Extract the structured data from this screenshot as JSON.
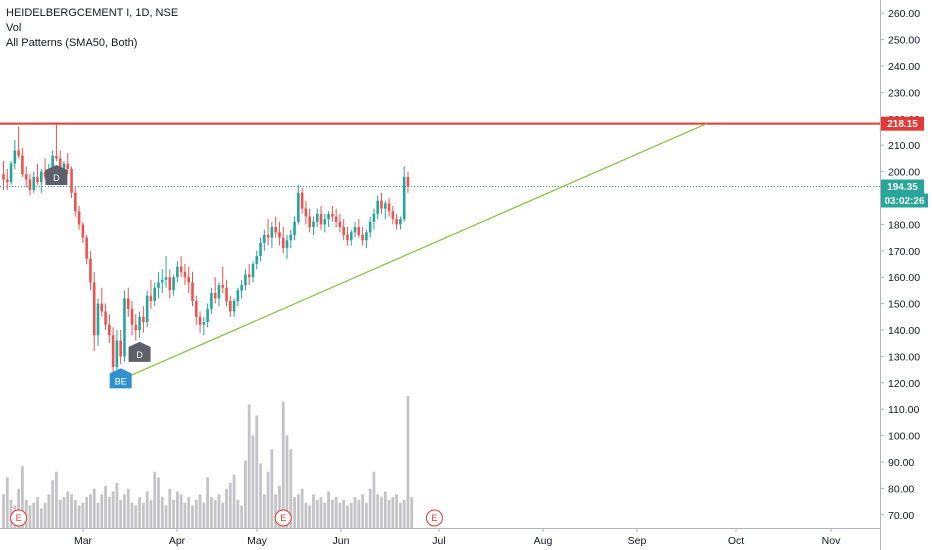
{
  "legend": {
    "title": "HEIDELBERGCEMENT I, 1D, NSE",
    "vol": "Vol",
    "pattern": "All Patterns (SMA50, Both)"
  },
  "colors": {
    "up": "#26a69a",
    "down": "#ef5350",
    "volume": "#c4c4c8",
    "resistance": "#e53935",
    "trendline": "#8bc34a",
    "price_line": "#26a69a",
    "marker": "#5d606b",
    "marker_blue": "#2f91d0"
  },
  "chart_data": {
    "type": "candlestick",
    "y_axis": {
      "min": 65,
      "max": 265,
      "ticks": [
        260,
        250,
        240,
        230,
        220,
        210,
        200,
        190,
        180,
        170,
        160,
        150,
        140,
        130,
        120,
        110,
        100,
        90,
        80,
        70
      ],
      "tick_labels": [
        "260.00",
        "250.00",
        "240.00",
        "230.00",
        "220.00",
        "210.00",
        "200.00",
        "190.00",
        "180.00",
        "170.00",
        "160.00",
        "150.00",
        "140.00",
        "130.00",
        "120.00",
        "110.00",
        "100.00",
        "90.00",
        "80.00",
        "70.00"
      ]
    },
    "x_axis": {
      "months": [
        "Mar",
        "Apr",
        "May",
        "Jun",
        "Jul",
        "Aug",
        "Sep",
        "Oct",
        "Nov"
      ]
    },
    "candles": [
      {
        "o": 199,
        "h": 204,
        "l": 193,
        "c": 197
      },
      {
        "o": 197,
        "h": 201,
        "l": 193,
        "c": 196
      },
      {
        "o": 196,
        "h": 204,
        "l": 195,
        "c": 203
      },
      {
        "o": 203,
        "h": 212,
        "l": 201,
        "c": 208
      },
      {
        "o": 208,
        "h": 217,
        "l": 205,
        "c": 206
      },
      {
        "o": 206,
        "h": 209,
        "l": 198,
        "c": 199
      },
      {
        "o": 199,
        "h": 202,
        "l": 194,
        "c": 197
      },
      {
        "o": 197,
        "h": 199,
        "l": 191,
        "c": 193
      },
      {
        "o": 193,
        "h": 200,
        "l": 192,
        "c": 198
      },
      {
        "o": 198,
        "h": 203,
        "l": 195,
        "c": 196
      },
      {
        "o": 196,
        "h": 201,
        "l": 192,
        "c": 200
      },
      {
        "o": 200,
        "h": 205,
        "l": 197,
        "c": 198
      },
      {
        "o": 198,
        "h": 203,
        "l": 195,
        "c": 201
      },
      {
        "o": 201,
        "h": 208,
        "l": 199,
        "c": 206
      },
      {
        "o": 206,
        "h": 218.5,
        "l": 204,
        "c": 205
      },
      {
        "o": 205,
        "h": 208,
        "l": 198,
        "c": 199
      },
      {
        "o": 199,
        "h": 204,
        "l": 196,
        "c": 203
      },
      {
        "o": 203,
        "h": 207,
        "l": 199,
        "c": 201
      },
      {
        "o": 201,
        "h": 202,
        "l": 190,
        "c": 192
      },
      {
        "o": 192,
        "h": 194,
        "l": 183,
        "c": 185
      },
      {
        "o": 185,
        "h": 187,
        "l": 178,
        "c": 180
      },
      {
        "o": 180,
        "h": 181,
        "l": 173,
        "c": 175
      },
      {
        "o": 175,
        "h": 176,
        "l": 165,
        "c": 167
      },
      {
        "o": 167,
        "h": 170,
        "l": 155,
        "c": 158
      },
      {
        "o": 158,
        "h": 162,
        "l": 132,
        "c": 138
      },
      {
        "o": 138,
        "h": 152,
        "l": 134,
        "c": 150
      },
      {
        "o": 150,
        "h": 156,
        "l": 145,
        "c": 147
      },
      {
        "o": 147,
        "h": 150,
        "l": 140,
        "c": 142
      },
      {
        "o": 142,
        "h": 146,
        "l": 135,
        "c": 138
      },
      {
        "o": 138,
        "h": 141,
        "l": 122,
        "c": 126
      },
      {
        "o": 126,
        "h": 140,
        "l": 121,
        "c": 136
      },
      {
        "o": 136,
        "h": 140,
        "l": 127,
        "c": 130
      },
      {
        "o": 130,
        "h": 155,
        "l": 128,
        "c": 152
      },
      {
        "o": 152,
        "h": 156,
        "l": 145,
        "c": 148
      },
      {
        "o": 148,
        "h": 151,
        "l": 138,
        "c": 142
      },
      {
        "o": 142,
        "h": 146,
        "l": 136,
        "c": 140
      },
      {
        "o": 140,
        "h": 147,
        "l": 137,
        "c": 145
      },
      {
        "o": 145,
        "h": 149,
        "l": 139,
        "c": 143
      },
      {
        "o": 143,
        "h": 155,
        "l": 141,
        "c": 153
      },
      {
        "o": 153,
        "h": 159,
        "l": 148,
        "c": 151
      },
      {
        "o": 151,
        "h": 158,
        "l": 149,
        "c": 156
      },
      {
        "o": 156,
        "h": 162,
        "l": 152,
        "c": 158
      },
      {
        "o": 158,
        "h": 163,
        "l": 154,
        "c": 159
      },
      {
        "o": 159,
        "h": 168,
        "l": 156,
        "c": 160
      },
      {
        "o": 160,
        "h": 163,
        "l": 152,
        "c": 155
      },
      {
        "o": 155,
        "h": 161,
        "l": 153,
        "c": 160
      },
      {
        "o": 160,
        "h": 166,
        "l": 158,
        "c": 164
      },
      {
        "o": 164,
        "h": 168,
        "l": 160,
        "c": 162
      },
      {
        "o": 162,
        "h": 165,
        "l": 157,
        "c": 160
      },
      {
        "o": 160,
        "h": 164,
        "l": 154,
        "c": 158
      },
      {
        "o": 158,
        "h": 162,
        "l": 149,
        "c": 151
      },
      {
        "o": 151,
        "h": 153,
        "l": 142,
        "c": 145
      },
      {
        "o": 145,
        "h": 147,
        "l": 139,
        "c": 142
      },
      {
        "o": 142,
        "h": 145,
        "l": 138,
        "c": 143
      },
      {
        "o": 143,
        "h": 150,
        "l": 141,
        "c": 148
      },
      {
        "o": 148,
        "h": 156,
        "l": 146,
        "c": 154
      },
      {
        "o": 154,
        "h": 160,
        "l": 150,
        "c": 152
      },
      {
        "o": 152,
        "h": 158,
        "l": 149,
        "c": 157
      },
      {
        "o": 157,
        "h": 164,
        "l": 154,
        "c": 156
      },
      {
        "o": 156,
        "h": 159,
        "l": 149,
        "c": 151
      },
      {
        "o": 151,
        "h": 153,
        "l": 145,
        "c": 147
      },
      {
        "o": 147,
        "h": 152,
        "l": 145,
        "c": 151
      },
      {
        "o": 151,
        "h": 156,
        "l": 149,
        "c": 155
      },
      {
        "o": 155,
        "h": 159,
        "l": 152,
        "c": 157
      },
      {
        "o": 157,
        "h": 163,
        "l": 155,
        "c": 161
      },
      {
        "o": 161,
        "h": 165,
        "l": 157,
        "c": 160
      },
      {
        "o": 160,
        "h": 166,
        "l": 158,
        "c": 165
      },
      {
        "o": 165,
        "h": 170,
        "l": 163,
        "c": 168
      },
      {
        "o": 168,
        "h": 175,
        "l": 166,
        "c": 173
      },
      {
        "o": 173,
        "h": 178,
        "l": 170,
        "c": 176
      },
      {
        "o": 176,
        "h": 182,
        "l": 172,
        "c": 175
      },
      {
        "o": 175,
        "h": 181,
        "l": 171,
        "c": 179
      },
      {
        "o": 179,
        "h": 183,
        "l": 175,
        "c": 177
      },
      {
        "o": 177,
        "h": 181,
        "l": 172,
        "c": 175
      },
      {
        "o": 175,
        "h": 179,
        "l": 169,
        "c": 171
      },
      {
        "o": 171,
        "h": 176,
        "l": 167,
        "c": 174
      },
      {
        "o": 174,
        "h": 178,
        "l": 171,
        "c": 176
      },
      {
        "o": 176,
        "h": 183,
        "l": 174,
        "c": 181
      },
      {
        "o": 181,
        "h": 195,
        "l": 180,
        "c": 192
      },
      {
        "o": 192,
        "h": 194,
        "l": 184,
        "c": 186
      },
      {
        "o": 186,
        "h": 189,
        "l": 180,
        "c": 183
      },
      {
        "o": 183,
        "h": 186,
        "l": 177,
        "c": 179
      },
      {
        "o": 179,
        "h": 183,
        "l": 176,
        "c": 181
      },
      {
        "o": 181,
        "h": 186,
        "l": 179,
        "c": 184
      },
      {
        "o": 184,
        "h": 187,
        "l": 178,
        "c": 180
      },
      {
        "o": 180,
        "h": 184,
        "l": 177,
        "c": 182
      },
      {
        "o": 182,
        "h": 185,
        "l": 179,
        "c": 184
      },
      {
        "o": 184,
        "h": 187,
        "l": 181,
        "c": 183
      },
      {
        "o": 183,
        "h": 186,
        "l": 179,
        "c": 181
      },
      {
        "o": 181,
        "h": 184,
        "l": 177,
        "c": 179
      },
      {
        "o": 179,
        "h": 182,
        "l": 174,
        "c": 176
      },
      {
        "o": 176,
        "h": 179,
        "l": 172,
        "c": 174
      },
      {
        "o": 174,
        "h": 178,
        "l": 172,
        "c": 177
      },
      {
        "o": 177,
        "h": 181,
        "l": 175,
        "c": 179
      },
      {
        "o": 179,
        "h": 182,
        "l": 175,
        "c": 176
      },
      {
        "o": 176,
        "h": 179,
        "l": 172,
        "c": 174
      },
      {
        "o": 174,
        "h": 178,
        "l": 171,
        "c": 177
      },
      {
        "o": 177,
        "h": 183,
        "l": 175,
        "c": 181
      },
      {
        "o": 181,
        "h": 186,
        "l": 178,
        "c": 184
      },
      {
        "o": 184,
        "h": 191,
        "l": 182,
        "c": 189
      },
      {
        "o": 189,
        "h": 192,
        "l": 184,
        "c": 186
      },
      {
        "o": 186,
        "h": 189,
        "l": 182,
        "c": 188
      },
      {
        "o": 188,
        "h": 190,
        "l": 183,
        "c": 185
      },
      {
        "o": 185,
        "h": 187,
        "l": 180,
        "c": 182
      },
      {
        "o": 182,
        "h": 184,
        "l": 178,
        "c": 180
      },
      {
        "o": 180,
        "h": 183,
        "l": 178,
        "c": 182
      },
      {
        "o": 182,
        "h": 202,
        "l": 181,
        "c": 198
      },
      {
        "o": 198,
        "h": 200,
        "l": 192,
        "c": 194.35
      }
    ],
    "volume": [
      12,
      18,
      10,
      8,
      14,
      22,
      10,
      8,
      9,
      11,
      7,
      9,
      12,
      17,
      20,
      10,
      11,
      13,
      12,
      10,
      8,
      9,
      11,
      12,
      14,
      9,
      12,
      15,
      11,
      13,
      16,
      10,
      12,
      14,
      9,
      8,
      11,
      9,
      13,
      10,
      20,
      18,
      11,
      8,
      14,
      10,
      13,
      12,
      9,
      11,
      8,
      10,
      12,
      9,
      18,
      11,
      10,
      12,
      9,
      14,
      16,
      19,
      10,
      8,
      24,
      44,
      33,
      40,
      23,
      12,
      20,
      28,
      12,
      15,
      45,
      33,
      28,
      11,
      12,
      14,
      9,
      8,
      12,
      10,
      11,
      9,
      13,
      10,
      11,
      9,
      10,
      8,
      9,
      11,
      10,
      12,
      9,
      14,
      20,
      12,
      11,
      13,
      10,
      11,
      12,
      9,
      10,
      47,
      11
    ],
    "resistance_level": 218.15,
    "last_price": 194.35,
    "trendline": {
      "from_index": 30,
      "from_price": 120.5,
      "to_index": 186,
      "to_price": 218.15
    },
    "price_tags": [
      {
        "label": "218.15",
        "value": 218.15,
        "color": "#e53935"
      },
      {
        "label": "194.35",
        "value": 194.35,
        "color": "#26a69a"
      }
    ],
    "countdown": "03:02:26",
    "pattern_markers": [
      {
        "label": "D",
        "index": 14,
        "style": "dark"
      },
      {
        "label": "BE",
        "index": 31,
        "style": "blue"
      },
      {
        "label": "D",
        "index": 36,
        "style": "dark"
      }
    ],
    "earnings_markers": [
      {
        "label": "E",
        "index": 4
      },
      {
        "label": "E",
        "index": 74
      },
      {
        "label": "E",
        "index": 114
      }
    ]
  }
}
